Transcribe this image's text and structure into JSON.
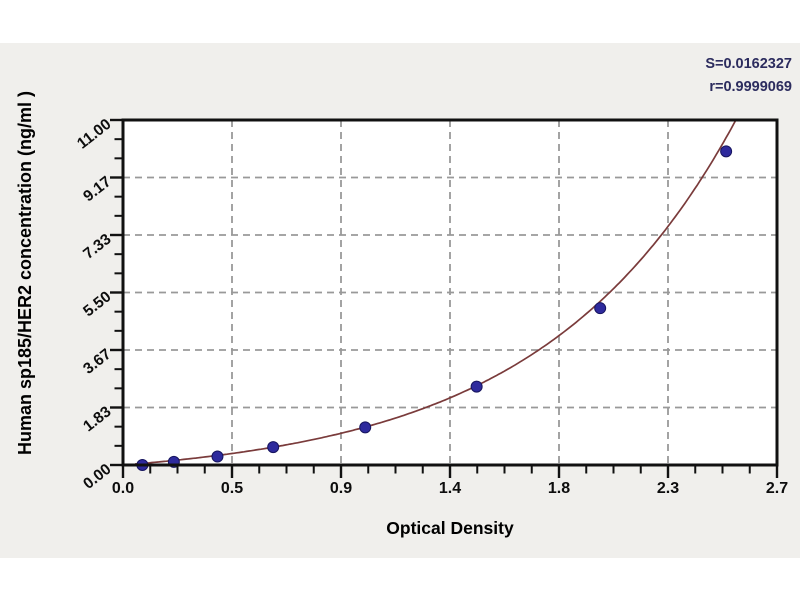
{
  "figure": {
    "panel_bg": "#f0efec",
    "plot_bg": "#ffffff"
  },
  "chart_data": {
    "type": "scatter",
    "title": "",
    "xlabel": "Optical Density",
    "ylabel": "Human sp185/HER2 concentration (ng/ml )",
    "xlim": [
      0,
      2.7
    ],
    "ylim": [
      0,
      11
    ],
    "x_tick_labels": [
      "0.0",
      "0.5",
      "0.9",
      "1.4",
      "1.8",
      "2.3",
      "2.7"
    ],
    "y_tick_labels": [
      "0.00",
      "1.83",
      "3.67",
      "5.50",
      "7.33",
      "9.17",
      "11.00"
    ],
    "x_minor_per_major": 3,
    "y_minor_per_major": 2,
    "grid": true,
    "legend": "none",
    "points": [
      {
        "x": 0.08,
        "y": 0.0
      },
      {
        "x": 0.21,
        "y": 0.1
      },
      {
        "x": 0.39,
        "y": 0.27
      },
      {
        "x": 0.62,
        "y": 0.57
      },
      {
        "x": 1.0,
        "y": 1.2
      },
      {
        "x": 1.46,
        "y": 2.5
      },
      {
        "x": 1.97,
        "y": 5.0
      },
      {
        "x": 2.49,
        "y": 10.0
      }
    ],
    "fit_curve": {
      "model": "y = a*(exp(b*x) - 1)",
      "a": 0.486,
      "b": 1.25,
      "x_start": 0.05
    },
    "annotations": {
      "s_label": "S=0.0162327",
      "r_label": "r=0.9999069"
    },
    "colors": {
      "curve": "#7a3b3b",
      "point": "#2e2a9d",
      "point_edge": "#17155f",
      "grid": "#999999",
      "axis": "#111111",
      "annotation": "#2c2c5e"
    }
  }
}
